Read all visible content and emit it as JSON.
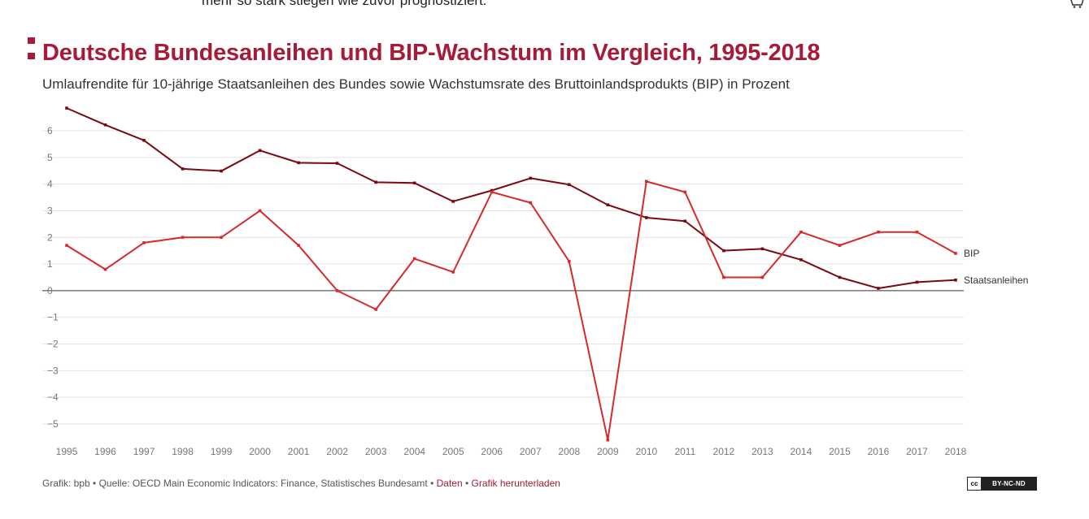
{
  "header": {
    "top_text": "mehr so stark stiegen wie zuvor prognostiziert.",
    "cart_icon": "shopping-cart-icon"
  },
  "chart_title": "Deutsche Bundesanleihen und BIP-Wachstum im Vergleich, 1995-2018",
  "chart_subtitle": "Umlaufrendite für 10-jährige Staatsanleihen des Bundes sowie Wachstumsrate des Bruttoinlandsprodukts (BIP) in Prozent",
  "colors": {
    "accent": "#a51b38",
    "bip": "#d62a2a",
    "staatsanleihen": "#7a0a0f",
    "grid": "#e3e3e3",
    "axis_text": "#777777"
  },
  "chart_data": {
    "type": "line",
    "title": "Deutsche Bundesanleihen und BIP-Wachstum im Vergleich, 1995-2018",
    "subtitle": "Umlaufrendite für 10-jährige Staatsanleihen des Bundes sowie Wachstumsrate des Bruttoinlandsprodukts (BIP) in Prozent",
    "xlabel": "",
    "ylabel": "",
    "ylim": [
      -5.5,
      6.5
    ],
    "yticks": [
      6,
      5,
      4,
      3,
      2,
      1,
      0,
      -1,
      -2,
      -3,
      -4,
      -5
    ],
    "ytick_labels": [
      "6",
      "5",
      "4",
      "3",
      "2",
      "1",
      "0",
      "−1",
      "−2",
      "−3",
      "−4",
      "−5"
    ],
    "x": [
      "1995",
      "1996",
      "1997",
      "1998",
      "1999",
      "2000",
      "2001",
      "2002",
      "2003",
      "2004",
      "2005",
      "2006",
      "2007",
      "2008",
      "2009",
      "2010",
      "2011",
      "2012",
      "2013",
      "2014",
      "2015",
      "2016",
      "2017",
      "2018"
    ],
    "series": [
      {
        "name": "Staatsanleihen",
        "label": "Staatsanleihen",
        "color": "#7a0a0f",
        "values": [
          6.85,
          6.22,
          5.64,
          4.57,
          4.49,
          5.26,
          4.8,
          4.78,
          4.07,
          4.04,
          3.35,
          3.76,
          4.22,
          3.98,
          3.22,
          2.74,
          2.61,
          1.5,
          1.57,
          1.16,
          0.5,
          0.09,
          0.32,
          0.4
        ]
      },
      {
        "name": "BIP",
        "label": "BIP",
        "color": "#d62a2a",
        "values": [
          1.7,
          0.8,
          1.8,
          2.0,
          2.0,
          3.0,
          1.7,
          0.0,
          -0.7,
          1.2,
          0.7,
          3.7,
          3.3,
          1.1,
          -5.6,
          4.1,
          3.7,
          0.5,
          0.5,
          2.2,
          1.7,
          2.2,
          2.2,
          1.4
        ]
      }
    ],
    "grid": true,
    "legend": "inline-right"
  },
  "footer": {
    "source": "Grafik: bpb • Quelle: OECD Main Economic Indicators: Finance, Statistisches Bundesamt •",
    "data_link": "Daten",
    "separator": "•",
    "download_link": "Grafik herunterladen",
    "license_cc": "cc",
    "license": "BY-NC-ND"
  }
}
